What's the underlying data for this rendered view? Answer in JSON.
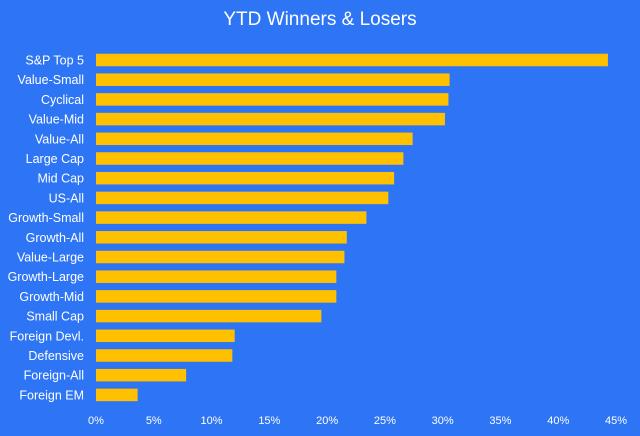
{
  "chart_data": {
    "type": "bar",
    "orientation": "horizontal",
    "title": "YTD Winners & Losers",
    "categories": [
      "S&P Top 5",
      "Value-Small",
      "Cyclical",
      "Value-Mid",
      "Value-All",
      "Large Cap",
      "Mid Cap",
      "US-All",
      "Growth-Small",
      "Growth-All",
      "Value-Large",
      "Growth-Large",
      "Growth-Mid",
      "Small Cap",
      "Foreign Devl.",
      "Defensive",
      "Foreign-All",
      "Foreign EM"
    ],
    "values": [
      44.3,
      30.6,
      30.5,
      30.2,
      27.4,
      26.6,
      25.8,
      25.3,
      23.4,
      21.7,
      21.5,
      20.8,
      20.8,
      19.5,
      12.0,
      11.8,
      7.8,
      3.6
    ],
    "value_unit": "%",
    "xlim": [
      0,
      45
    ],
    "xticks": [
      "0%",
      "5%",
      "10%",
      "15%",
      "20%",
      "25%",
      "30%",
      "35%",
      "40%",
      "45%"
    ],
    "grid": false,
    "legend": "none",
    "colors": {
      "background": "#2e75f6",
      "bar": "#ffc000",
      "text": "#ffffff"
    }
  }
}
